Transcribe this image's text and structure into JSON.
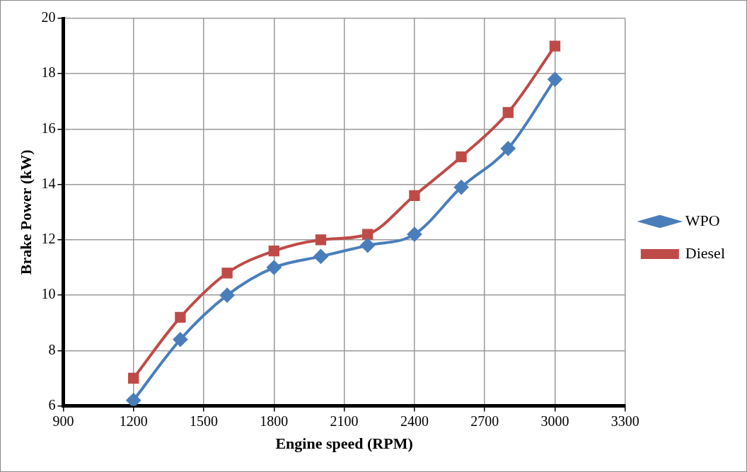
{
  "chart_data": {
    "type": "line",
    "xlabel": "Engine speed (RPM)",
    "ylabel": "Brake Power (kW)",
    "x": [
      1200,
      1400,
      1600,
      1800,
      2000,
      2200,
      2400,
      2600,
      2800,
      3000
    ],
    "series": [
      {
        "name": "WPO",
        "color": "#4a7ebb",
        "marker": "diamond",
        "values": [
          6.2,
          8.4,
          10.0,
          11.0,
          11.4,
          11.8,
          12.2,
          13.9,
          15.3,
          17.8
        ]
      },
      {
        "name": "Diesel",
        "color": "#be4b48",
        "marker": "square",
        "values": [
          7.0,
          9.2,
          10.8,
          11.6,
          12.0,
          12.2,
          13.6,
          15.0,
          16.6,
          19.0
        ]
      }
    ],
    "xlim": [
      900,
      3300
    ],
    "xticks": [
      900,
      1200,
      1500,
      1800,
      2100,
      2400,
      2700,
      3000,
      3300
    ],
    "ylim": [
      6,
      20
    ],
    "yticks": [
      6,
      8,
      10,
      12,
      14,
      16,
      18,
      20
    ],
    "grid": true,
    "legend": "right",
    "line_style": "solid"
  }
}
